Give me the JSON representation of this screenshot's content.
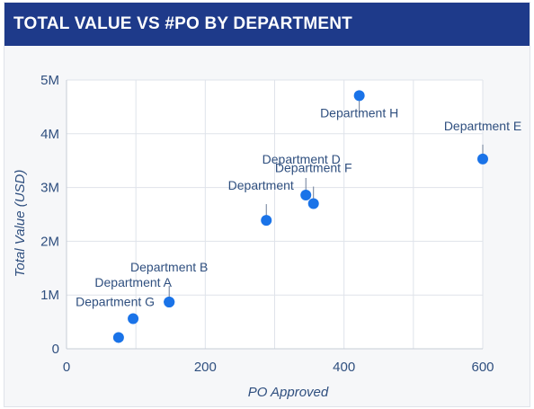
{
  "header": {
    "title": "TOTAL VALUE VS #PO BY DEPARTMENT"
  },
  "colors": {
    "header_bg": "#1e3a8a",
    "point": "#1a73e8",
    "text": "#2f4f7f",
    "grid": "#dfe3ea"
  },
  "chart_data": {
    "type": "scatter",
    "title": "TOTAL VALUE VS #PO BY DEPARTMENT",
    "xlabel": "PO Approved",
    "ylabel": "Total Value (USD)",
    "xlim": [
      0,
      600
    ],
    "ylim": [
      0,
      5000000
    ],
    "x_ticks": [
      0,
      200,
      400,
      600
    ],
    "x_tick_labels": [
      "0",
      "200",
      "400",
      "600"
    ],
    "y_ticks": [
      0,
      1000000,
      2000000,
      3000000,
      4000000,
      5000000
    ],
    "y_tick_labels": [
      "0",
      "1M",
      "2M",
      "3M",
      "4M",
      "5M"
    ],
    "grid": true,
    "points": [
      {
        "label": "",
        "x": 75,
        "y": 210000
      },
      {
        "label": "Department G",
        "x": 96,
        "y": 560000
      },
      {
        "label": "Department A",
        "x": 148,
        "y": 870000
      },
      {
        "label": "Department B",
        "x": 148,
        "y": 870000
      },
      {
        "label": "Department",
        "x": 288,
        "y": 2390000
      },
      {
        "label": "Department D",
        "x": 345,
        "y": 2860000
      },
      {
        "label": "Department F",
        "x": 356,
        "y": 2700000
      },
      {
        "label": "Department H",
        "x": 422,
        "y": 4710000
      },
      {
        "label": "Department E",
        "x": 600,
        "y": 3530000
      }
    ]
  }
}
